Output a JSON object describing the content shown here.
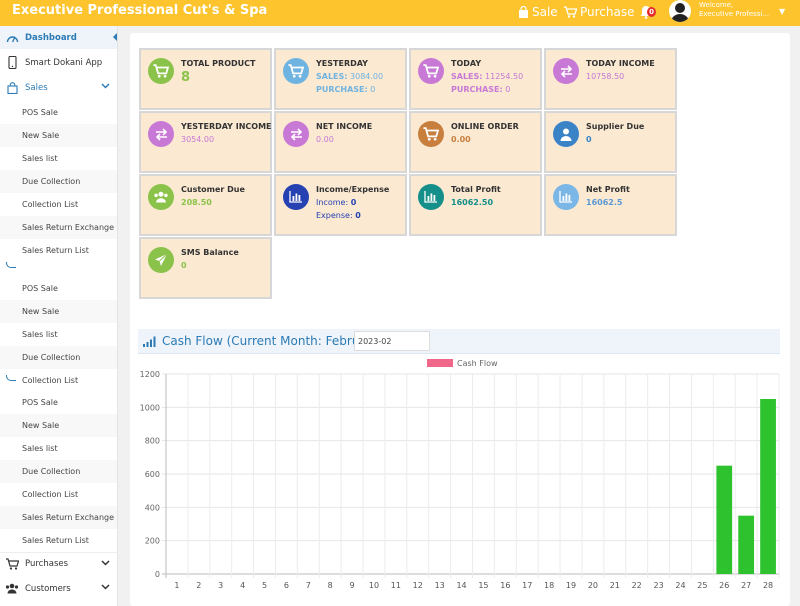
{
  "header": {
    "brand": "Executive Professional Cut's & Spa",
    "sale_label": "Sale",
    "purchase_label": "Purchase",
    "notification_count": "0",
    "welcome_line1": "Welcome,",
    "welcome_line2": "Executive Professi..."
  },
  "sidebar": {
    "dashboard": "Dashboard",
    "smart_app": "Smart Dokani App",
    "sales": "Sales",
    "sales_sub_1": [
      "POS Sale",
      "New Sale",
      "Sales list",
      "Due Collection",
      "Collection List",
      "Sales Return Exchange",
      "Sales Return List"
    ],
    "sales_sub_2": [
      "POS Sale",
      "New Sale",
      "Sales list",
      "Due Collection",
      "Collection List"
    ],
    "sales_sub_3": [
      "POS Sale",
      "New Sale",
      "Sales list",
      "Due Collection",
      "Collection List",
      "Sales Return Exchange",
      "Sales Return List"
    ],
    "purchases": "Purchases",
    "customers": "Customers"
  },
  "cards": {
    "total_product": {
      "title": "TOTAL PRODUCT",
      "value": "8"
    },
    "yesterday": {
      "title": "YESTERDAY",
      "sales_label": "SALES:",
      "sales_value": "3084.00",
      "purchase_label": "PURCHASE:",
      "purchase_value": "0"
    },
    "today": {
      "title": "TODAY",
      "sales_label": "SALES:",
      "sales_value": "11254.50",
      "purchase_label": "PURCHASE:",
      "purchase_value": "0"
    },
    "today_income": {
      "title": "TODAY INCOME",
      "value": "10758.50"
    },
    "yesterday_income": {
      "title": "YESTERDAY INCOME",
      "value": "3054.00"
    },
    "net_income": {
      "title": "NET INCOME",
      "value": "0.00"
    },
    "online_order": {
      "title": "ONLINE ORDER",
      "value": "0.00"
    },
    "supplier_due": {
      "title": "Supplier Due",
      "value": "0"
    },
    "customer_due": {
      "title": "Customer Due",
      "value": "208.50"
    },
    "income_expense": {
      "title": "Income/Expense",
      "income_label": "Income:",
      "income_value": "0",
      "expense_label": "Expense:",
      "expense_value": "0"
    },
    "total_profit": {
      "title": "Total Profit",
      "value": "16062.50"
    },
    "net_profit": {
      "title": "Net Profit",
      "value": "16062.5"
    },
    "sms_balance": {
      "title": "SMS Balance",
      "value": "0"
    }
  },
  "cashflow": {
    "title": "Cash Flow (Current Month: February)",
    "month_value": "2023-02"
  },
  "colors": {
    "topbar": "#fec42d",
    "card_bg": "#fbe9d2",
    "accent_blue": "#2c7bb6",
    "bar_green": "#2ec22e",
    "legend_pink": "#f0678a"
  },
  "chart_data": {
    "type": "bar",
    "legend": [
      "Cash Flow"
    ],
    "categories": [
      "1",
      "2",
      "3",
      "4",
      "5",
      "6",
      "7",
      "8",
      "9",
      "10",
      "11",
      "12",
      "13",
      "14",
      "15",
      "16",
      "17",
      "18",
      "19",
      "20",
      "21",
      "22",
      "23",
      "24",
      "25",
      "26",
      "27",
      "28"
    ],
    "series": [
      {
        "name": "Cash Flow",
        "values": [
          0,
          0,
          0,
          0,
          0,
          0,
          0,
          0,
          0,
          0,
          0,
          0,
          0,
          0,
          0,
          0,
          0,
          0,
          0,
          0,
          0,
          0,
          0,
          0,
          0,
          650,
          350,
          1050
        ]
      }
    ],
    "yticks": [
      "0",
      "200",
      "400",
      "600",
      "800",
      "1000",
      "1200"
    ],
    "ylim": [
      0,
      1200
    ],
    "grid": true,
    "legend_position": "top-center"
  }
}
